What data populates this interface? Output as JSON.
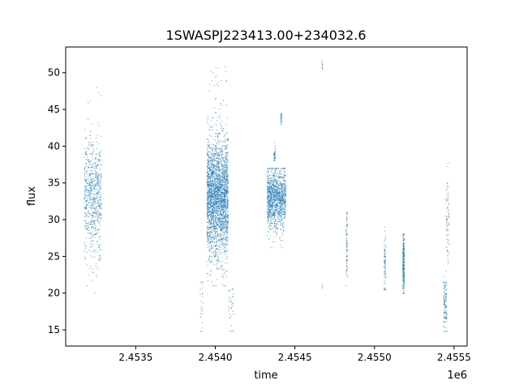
{
  "chart_data": {
    "type": "scatter",
    "title": "1SWASPJ223413.00+234032.6",
    "xlabel": "time",
    "ylabel": "flux",
    "x_offset_label": "1e6",
    "xlim": [
      2453060,
      2455582
    ],
    "ylim": [
      12.8,
      53.5
    ],
    "x_ticks": [
      2453500,
      2454000,
      2454500,
      2455000,
      2455500
    ],
    "x_tick_labels": [
      "2.4535",
      "2.4540",
      "2.4545",
      "2.4550",
      "2.4555"
    ],
    "y_ticks": [
      15,
      20,
      25,
      30,
      35,
      40,
      45,
      50
    ],
    "y_tick_labels": [
      "15",
      "20",
      "25",
      "30",
      "35",
      "40",
      "45",
      "50"
    ],
    "grid": false,
    "marker_color": "#1f77b4",
    "point_groups": [
      {
        "x_range": [
          2453177,
          2453284
        ],
        "y_center": 33,
        "y_spread": 4,
        "y_range": [
          20,
          48
        ],
        "count": 700
      },
      {
        "x_range": [
          2453948,
          2454081
        ],
        "y_center": 33,
        "y_spread": 4,
        "y_range": [
          21,
          51.5
        ],
        "count": 2600
      },
      {
        "x_range": [
          2453905,
          2453925
        ],
        "y_center": 18,
        "y_spread": 2,
        "y_range": [
          14.8,
          21.5
        ],
        "count": 25
      },
      {
        "x_range": [
          2454080,
          2454118
        ],
        "y_center": 18,
        "y_spread": 2,
        "y_range": [
          14.8,
          22
        ],
        "count": 35
      },
      {
        "x_range": [
          2454326,
          2454443
        ],
        "y_center": 33,
        "y_spread": 2,
        "y_range": [
          26,
          37
        ],
        "count": 1200
      },
      {
        "x_range": [
          2454368,
          2454378
        ],
        "y_center": 39,
        "y_spread": 0.7,
        "y_range": [
          37.5,
          40.5
        ],
        "count": 40
      },
      {
        "x_range": [
          2454410,
          2454418
        ],
        "y_center": 43.8,
        "y_spread": 0.4,
        "y_range": [
          43,
          44.5
        ],
        "count": 25
      },
      {
        "x_range": [
          2454669,
          2454675
        ],
        "y_center": 51,
        "y_spread": 0.4,
        "y_range": [
          50.5,
          51.8
        ],
        "count": 10
      },
      {
        "x_range": [
          2454670,
          2454674
        ],
        "y_center": 21,
        "y_spread": 0.5,
        "y_range": [
          20,
          21.6
        ],
        "count": 4
      },
      {
        "x_range": [
          2454822,
          2454830
        ],
        "y_center": 26,
        "y_spread": 2.5,
        "y_range": [
          21,
          31
        ],
        "count": 80
      },
      {
        "x_range": [
          2455060,
          2455072
        ],
        "y_center": 24,
        "y_spread": 2.2,
        "y_range": [
          20.5,
          29
        ],
        "count": 80
      },
      {
        "x_range": [
          2455178,
          2455188
        ],
        "y_center": 24,
        "y_spread": 2.2,
        "y_range": [
          20,
          28
        ],
        "count": 260
      },
      {
        "x_range": [
          2455434,
          2455455
        ],
        "y_center": 18.5,
        "y_spread": 2,
        "y_range": [
          14.8,
          23
        ],
        "count": 120
      },
      {
        "x_range": [
          2455450,
          2455470
        ],
        "y_center": 30,
        "y_spread": 3,
        "y_range": [
          24,
          38.5
        ],
        "count": 70
      }
    ]
  }
}
